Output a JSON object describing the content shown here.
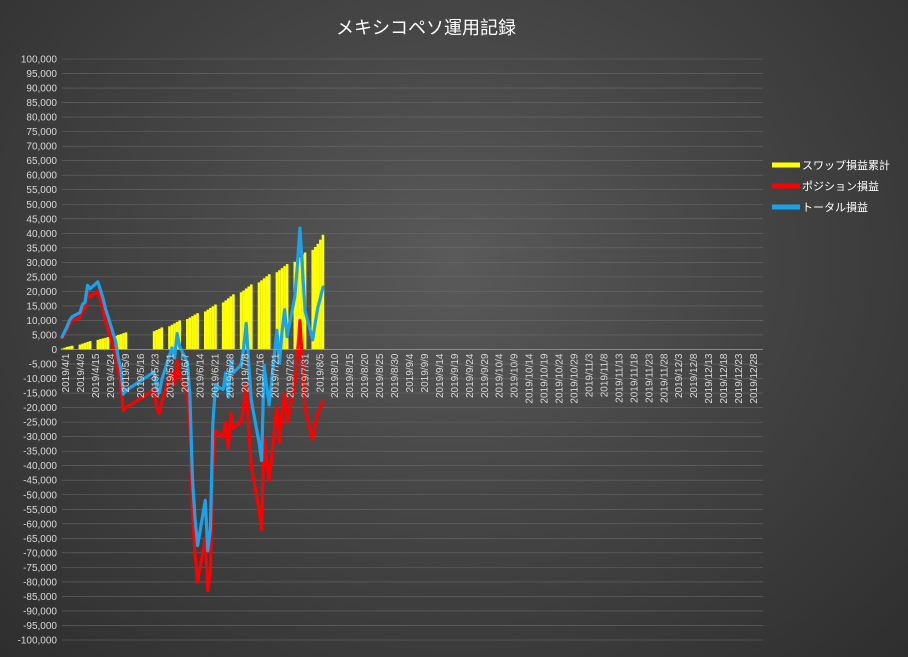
{
  "chart_data": {
    "type": "bar+line",
    "title": "メキシコペソ運用記録",
    "xlabel": "",
    "ylabel": "",
    "ylim": [
      -100000,
      100000
    ],
    "y_ticks": [
      "100,000",
      "95,000",
      "90,000",
      "85,000",
      "80,000",
      "75,000",
      "70,000",
      "65,000",
      "60,000",
      "55,000",
      "50,000",
      "45,000",
      "40,000",
      "35,000",
      "30,000",
      "25,000",
      "20,000",
      "15,000",
      "10,000",
      "5,000",
      "0",
      "-5,000",
      "-10,000",
      "-15,000",
      "-20,000",
      "-25,000",
      "-30,000",
      "-35,000",
      "-40,000",
      "-45,000",
      "-50,000",
      "-55,000",
      "-60,000",
      "-65,000",
      "-70,000",
      "-75,000",
      "-80,000",
      "-85,000",
      "-90,000",
      "-95,000",
      "-100,000"
    ],
    "x_start": "2019-04-01",
    "x_end": "2019-12-31",
    "x_tick_labels": [
      "2019/4/1",
      "2019/4/8",
      "2019/4/15",
      "2019/4/24",
      "2019/5/9",
      "2019/5/16",
      "2019/5/23",
      "2019/5/31",
      "2019/6/7",
      "2019/6/14",
      "2019/6/21",
      "2019/6/28",
      "2019/7/8",
      "2019/7/16",
      "2019/7/21",
      "2019/7/26",
      "2019/7/31",
      "2019/8/5",
      "2019/8/10",
      "2019/8/15",
      "2019/8/20",
      "2019/8/25",
      "2019/8/30",
      "2019/9/4",
      "2019/9/9",
      "2019/9/14",
      "2019/9/19",
      "2019/9/24",
      "2019/9/29",
      "2019/10/4",
      "2019/10/9",
      "2019/10/14",
      "2019/10/19",
      "2019/10/24",
      "2019/10/29",
      "2019/11/3",
      "2019/11/8",
      "2019/11/13",
      "2019/11/18",
      "2019/11/23",
      "2019/11/28",
      "2019/12/3",
      "2019/12/8",
      "2019/12/13",
      "2019/12/18",
      "2019/12/23",
      "2019/12/28"
    ],
    "legend_position": "right",
    "series": [
      {
        "name": "スワップ損益累計",
        "kind": "bar",
        "color": "#ffff00",
        "x": [
          "2019-04-01",
          "2019-04-02",
          "2019-04-03",
          "2019-04-04",
          "2019-04-05",
          "2019-04-08",
          "2019-04-09",
          "2019-04-10",
          "2019-04-11",
          "2019-04-12",
          "2019-04-15",
          "2019-04-16",
          "2019-04-17",
          "2019-04-18",
          "2019-04-19",
          "2019-04-22",
          "2019-04-23",
          "2019-04-24",
          "2019-04-25",
          "2019-04-26",
          "2019-05-07",
          "2019-05-08",
          "2019-05-09",
          "2019-05-10",
          "2019-05-13",
          "2019-05-14",
          "2019-05-15",
          "2019-05-16",
          "2019-05-17",
          "2019-05-20",
          "2019-05-21",
          "2019-05-22",
          "2019-05-23",
          "2019-05-24",
          "2019-05-27",
          "2019-05-28",
          "2019-05-29",
          "2019-05-30",
          "2019-05-31",
          "2019-06-03",
          "2019-06-04",
          "2019-06-05",
          "2019-06-06",
          "2019-06-07",
          "2019-06-10",
          "2019-06-11",
          "2019-06-12",
          "2019-06-13",
          "2019-06-14",
          "2019-06-17",
          "2019-06-18",
          "2019-06-19",
          "2019-06-20",
          "2019-06-21",
          "2019-06-24",
          "2019-06-25",
          "2019-06-26",
          "2019-06-27",
          "2019-06-28",
          "2019-07-01",
          "2019-07-02",
          "2019-07-03",
          "2019-07-04",
          "2019-07-05",
          "2019-07-08",
          "2019-07-09",
          "2019-07-10",
          "2019-07-11",
          "2019-07-12"
        ],
        "values": [
          300,
          600,
          900,
          1100,
          1300,
          1700,
          2000,
          2300,
          2600,
          2900,
          3300,
          3600,
          3800,
          4000,
          4300,
          4700,
          5000,
          5300,
          5600,
          5900,
          6300,
          6700,
          7100,
          7600,
          8000,
          8500,
          9000,
          9500,
          10000,
          10500,
          11000,
          11500,
          12000,
          12500,
          13100,
          13700,
          14300,
          14900,
          15500,
          16200,
          16900,
          17600,
          18300,
          19000,
          19700,
          20300,
          21000,
          21700,
          22400,
          23100,
          23800,
          24500,
          25200,
          25900,
          26600,
          27300,
          28000,
          28700,
          29400,
          30200,
          31000,
          31800,
          32600,
          33400,
          34300,
          35300,
          36400,
          37800,
          39500
        ]
      },
      {
        "name": "ポジション損益",
        "kind": "line",
        "color": "#ff0000",
        "x": [
          "2019-04-01",
          "2019-04-02",
          "2019-04-03",
          "2019-04-04",
          "2019-04-05",
          "2019-04-08",
          "2019-04-09",
          "2019-04-10",
          "2019-04-11",
          "2019-04-12",
          "2019-04-15",
          "2019-04-16",
          "2019-04-17",
          "2019-04-18",
          "2019-04-19",
          "2019-04-22",
          "2019-04-23",
          "2019-04-24",
          "2019-04-25",
          "2019-04-26",
          "2019-05-07",
          "2019-05-08",
          "2019-05-09",
          "2019-05-10",
          "2019-05-13",
          "2019-05-14",
          "2019-05-15",
          "2019-05-16",
          "2019-05-17",
          "2019-05-20",
          "2019-05-21",
          "2019-05-22",
          "2019-05-23",
          "2019-05-24",
          "2019-05-27",
          "2019-05-28",
          "2019-05-29",
          "2019-05-30",
          "2019-05-31",
          "2019-06-03",
          "2019-06-04",
          "2019-06-05",
          "2019-06-06",
          "2019-06-07",
          "2019-06-10",
          "2019-06-11",
          "2019-06-12",
          "2019-06-13",
          "2019-06-14",
          "2019-06-17",
          "2019-06-18",
          "2019-06-19",
          "2019-06-20",
          "2019-06-21",
          "2019-06-24",
          "2019-06-25",
          "2019-06-26",
          "2019-06-27",
          "2019-06-28",
          "2019-07-01",
          "2019-07-02",
          "2019-07-03",
          "2019-07-04",
          "2019-07-05",
          "2019-07-08",
          "2019-07-09",
          "2019-07-10",
          "2019-07-11",
          "2019-07-12"
        ],
        "values": [
          4000,
          5500,
          7000,
          9000,
          10000,
          11000,
          13500,
          14000,
          19500,
          18000,
          20000,
          17000,
          14000,
          10000,
          7000,
          -2000,
          -8000,
          -12000,
          -21000,
          -20000,
          -14000,
          -20000,
          -22000,
          -18000,
          -10000,
          -8000,
          -12000,
          -4000,
          -9000,
          -15000,
          -27000,
          -56000,
          -70000,
          -80000,
          -65000,
          -83000,
          -76000,
          -40000,
          -28000,
          -30000,
          -25000,
          -34000,
          -22000,
          -27000,
          -25000,
          -20000,
          -12000,
          -27000,
          -40000,
          -55000,
          -62000,
          -30000,
          -38000,
          -45000,
          -20000,
          -32000,
          -22000,
          -15000,
          -25000,
          -12000,
          -2000,
          10000,
          -5000,
          -20000,
          -31000,
          -26000,
          -22000,
          -20000,
          -18000
        ]
      },
      {
        "name": "トータル損益",
        "kind": "line",
        "color": "#1aa3e8",
        "x": [
          "2019-04-01",
          "2019-04-02",
          "2019-04-03",
          "2019-04-04",
          "2019-04-05",
          "2019-04-08",
          "2019-04-09",
          "2019-04-10",
          "2019-04-11",
          "2019-04-12",
          "2019-04-15",
          "2019-04-16",
          "2019-04-17",
          "2019-04-18",
          "2019-04-19",
          "2019-04-22",
          "2019-04-23",
          "2019-04-24",
          "2019-04-25",
          "2019-04-26",
          "2019-05-07",
          "2019-05-08",
          "2019-05-09",
          "2019-05-10",
          "2019-05-13",
          "2019-05-14",
          "2019-05-15",
          "2019-05-16",
          "2019-05-17",
          "2019-05-20",
          "2019-05-21",
          "2019-05-22",
          "2019-05-23",
          "2019-05-24",
          "2019-05-27",
          "2019-05-28",
          "2019-05-29",
          "2019-05-30",
          "2019-05-31",
          "2019-06-03",
          "2019-06-04",
          "2019-06-05",
          "2019-06-06",
          "2019-06-07",
          "2019-06-10",
          "2019-06-11",
          "2019-06-12",
          "2019-06-13",
          "2019-06-14",
          "2019-06-17",
          "2019-06-18",
          "2019-06-19",
          "2019-06-20",
          "2019-06-21",
          "2019-06-24",
          "2019-06-25",
          "2019-06-26",
          "2019-06-27",
          "2019-06-28",
          "2019-07-01",
          "2019-07-02",
          "2019-07-03",
          "2019-07-04",
          "2019-07-05",
          "2019-07-08",
          "2019-07-09",
          "2019-07-10",
          "2019-07-11",
          "2019-07-12"
        ],
        "values": [
          4300,
          6100,
          7900,
          10100,
          11300,
          12700,
          15500,
          16300,
          22100,
          20900,
          23300,
          20600,
          17800,
          14000,
          11300,
          2700,
          -3000,
          -6700,
          -15400,
          -14100,
          -7700,
          -13300,
          -14900,
          -10400,
          -2000,
          500,
          -3000,
          5500,
          1000,
          -4500,
          -16000,
          -44500,
          -58000,
          -67500,
          -51900,
          -69300,
          -61700,
          -25100,
          -12500,
          -13800,
          -8100,
          -16400,
          -3700,
          -8000,
          -5300,
          300,
          9000,
          -5300,
          -17600,
          -31900,
          -38200,
          -5500,
          -12800,
          -19100,
          6600,
          -4700,
          6000,
          13700,
          4400,
          18200,
          29000,
          41800,
          27600,
          13400,
          3300,
          9300,
          14400,
          17800,
          21500
        ]
      }
    ]
  }
}
